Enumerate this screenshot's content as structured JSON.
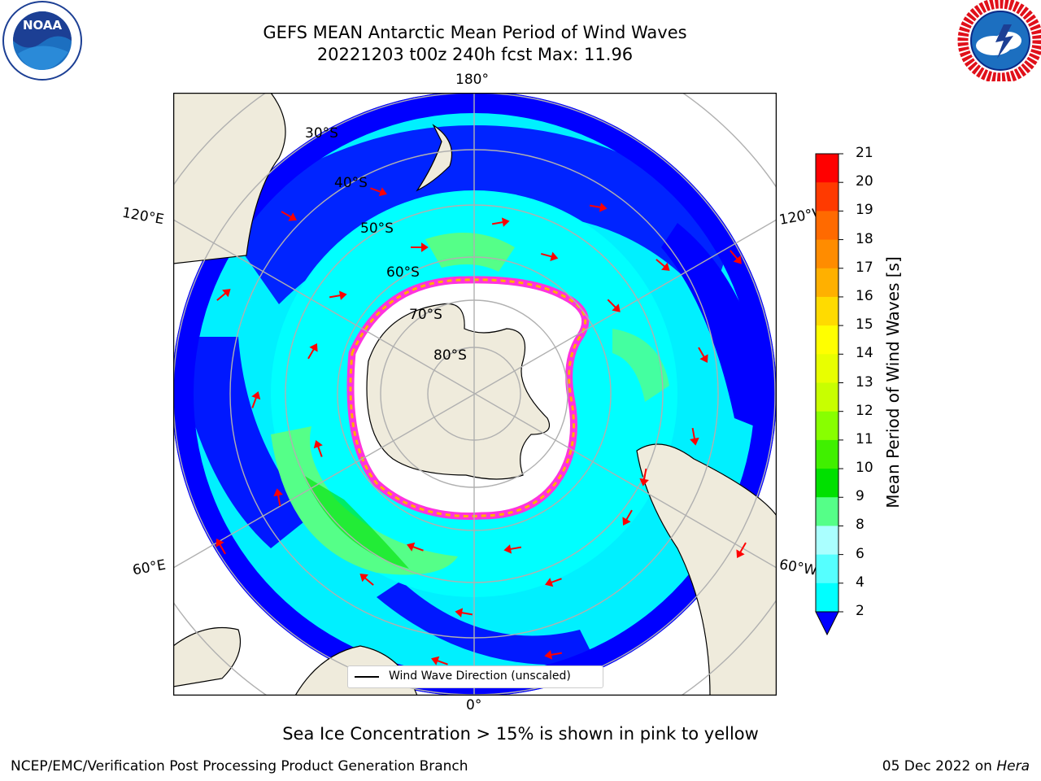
{
  "title": {
    "line1": "GEFS MEAN Antarctic Mean Period of Wind Waves",
    "line2": "20221203 t00z 240h fcst   Max: 11.96"
  },
  "map": {
    "projection": "South Polar Stereographic",
    "longitude_labels": {
      "top": "180°",
      "bottom": "0°",
      "left_upper": "120°E",
      "left_lower": "60°E",
      "right_upper": "120°W",
      "right_lower": "60°W"
    },
    "latitude_labels": [
      "30°S",
      "40°S",
      "50°S",
      "60°S",
      "70°S",
      "80°S"
    ],
    "colors": {
      "land": "#efebdc",
      "ice": "#ffffff",
      "arrows": "#ff0000",
      "grid": "#b0b0b0"
    },
    "fields": [
      {
        "period_s": "2-4",
        "color": "#0000ff"
      },
      {
        "period_s": "4-6",
        "color": "#00f0ff"
      },
      {
        "period_s": "6-8",
        "color": "#00ffff"
      },
      {
        "period_s": "8-9",
        "color": "#55ff88"
      },
      {
        "period_s": "9-10",
        "color": "#00e000"
      }
    ]
  },
  "legend": {
    "label": "Wind Wave Direction (unscaled)"
  },
  "colorbar": {
    "label": "Mean Period of Wind Waves [s]",
    "ticks": [
      "21",
      "20",
      "19",
      "18",
      "17",
      "16",
      "15",
      "14",
      "13",
      "12",
      "11",
      "10",
      "9",
      "8",
      "6",
      "4",
      "2"
    ],
    "colors": [
      "#ff0000",
      "#ff3a00",
      "#ff6a00",
      "#ff8c00",
      "#ffb000",
      "#ffdb00",
      "#ffff00",
      "#e8ff00",
      "#c8ff00",
      "#88ff00",
      "#40f000",
      "#00e000",
      "#55ff88",
      "#aaffff",
      "#55ffff",
      "#00ffff",
      "#00f0ff",
      "#0070ff",
      "#0000ff"
    ]
  },
  "caption": "Sea Ice Concentration > 15% is shown in pink to yellow",
  "footer": {
    "left": "NCEP/EMC/Verification Post Processing Product Generation Branch",
    "right_date": "05 Dec 2022 on",
    "right_host": "Hera"
  },
  "logos": {
    "left": "NOAA",
    "right": "NATIONAL WEATHER SERVICE"
  }
}
